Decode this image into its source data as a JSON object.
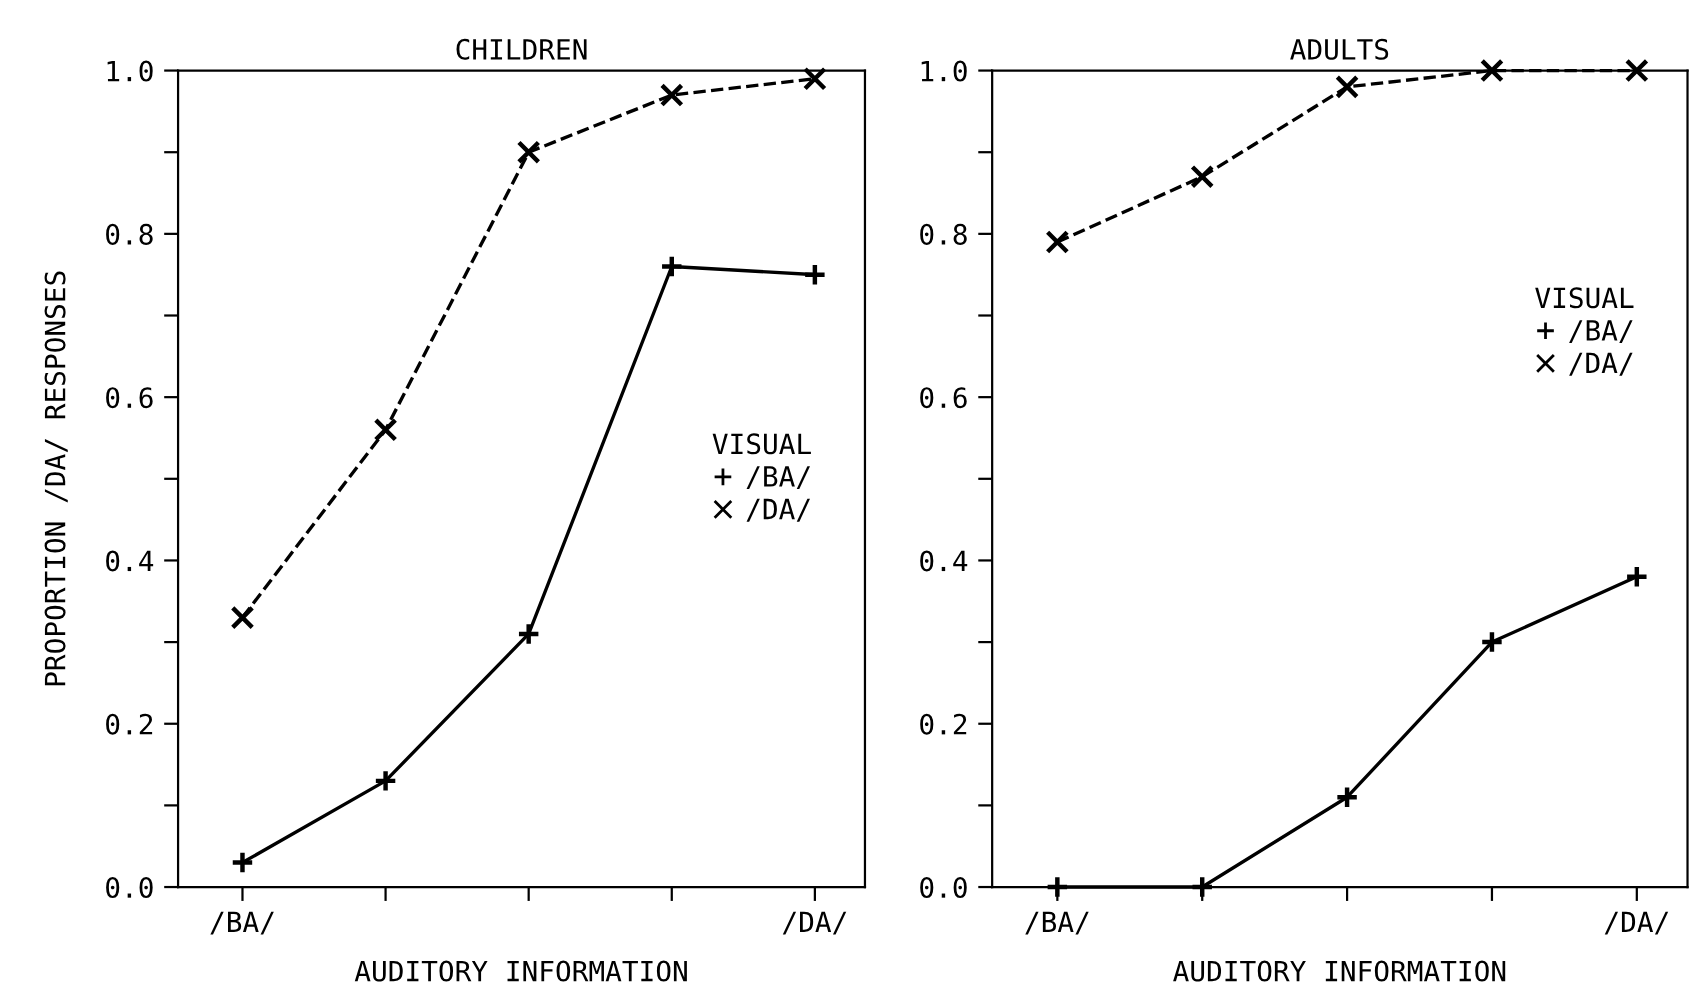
{
  "chart_data": [
    {
      "type": "line",
      "title": "CHILDREN",
      "xlabel": "AUDITORY INFORMATION",
      "ylabel": "PROPORTION /DA/ RESPONSES",
      "legend_title": "VISUAL",
      "legend": "right",
      "categories": [
        "/BA/",
        null,
        null,
        null,
        "/DA/"
      ],
      "series": [
        {
          "name": "/BA/",
          "color": "#000000",
          "marker": "plus",
          "line_style": "solid",
          "values": [
            0.03,
            0.13,
            0.31,
            0.76,
            0.75
          ]
        },
        {
          "name": "/DA/",
          "color": "#000000",
          "marker": "cross",
          "line_style": "dashed",
          "values": [
            0.33,
            0.56,
            0.9,
            0.97,
            0.99
          ]
        }
      ],
      "ylim": [
        0,
        1
      ],
      "yticks": [
        {
          "value": 0,
          "label": "0.0"
        },
        {
          "value": 0.1,
          "label": null
        },
        {
          "value": 0.2,
          "label": "0.2"
        },
        {
          "value": 0.3,
          "label": null
        },
        {
          "value": 0.4,
          "label": "0.4"
        },
        {
          "value": 0.5,
          "label": null
        },
        {
          "value": 0.6,
          "label": "0.6"
        },
        {
          "value": 0.7,
          "label": null
        },
        {
          "value": 0.8,
          "label": "0.8"
        },
        {
          "value": 0.9,
          "label": null
        },
        {
          "value": 1,
          "label": "1.0"
        }
      ],
      "grid": false
    },
    {
      "type": "line",
      "title": "ADULTS",
      "xlabel": "AUDITORY INFORMATION",
      "legend_title": "VISUAL",
      "legend": "upper right",
      "categories": [
        "/BA/",
        null,
        null,
        null,
        "/DA/"
      ],
      "series": [
        {
          "name": "/BA/",
          "color": "#000000",
          "marker": "plus",
          "line_style": "solid",
          "values": [
            0,
            0,
            0.11,
            0.3,
            0.38
          ]
        },
        {
          "name": "/DA/",
          "color": "#000000",
          "marker": "cross",
          "line_style": "dashed",
          "values": [
            0.79,
            0.87,
            0.98,
            1.0,
            1.0
          ]
        }
      ],
      "ylim": [
        0,
        1
      ],
      "yticks": [
        {
          "value": 0,
          "label": "0.0"
        },
        {
          "value": 0.1,
          "label": null
        },
        {
          "value": 0.2,
          "label": "0.2"
        },
        {
          "value": 0.3,
          "label": null
        },
        {
          "value": 0.4,
          "label": "0.4"
        },
        {
          "value": 0.5,
          "label": null
        },
        {
          "value": 0.6,
          "label": "0.6"
        },
        {
          "value": 0.7,
          "label": null
        },
        {
          "value": 0.8,
          "label": "0.8"
        },
        {
          "value": 0.9,
          "label": null
        },
        {
          "value": 1,
          "label": "1.0"
        }
      ],
      "grid": false
    }
  ]
}
